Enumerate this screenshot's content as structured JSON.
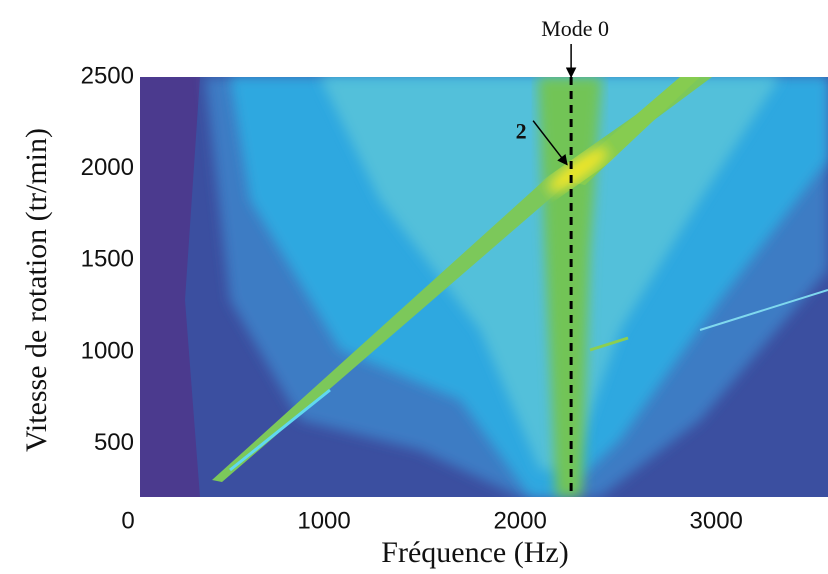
{
  "chart_data": {
    "type": "heatmap",
    "x_label": "Fréquence (Hz)",
    "y_label": "Vitesse de rotation (tr/min)",
    "xlim": [
      0,
      3560
    ],
    "ylim": [
      210,
      2500
    ],
    "xticks": [
      0,
      1000,
      2000,
      3000
    ],
    "yticks": [
      500,
      1000,
      1500,
      2000,
      2500
    ],
    "annotations": [
      {
        "text": "Mode 0",
        "x": 2260
      },
      {
        "text": "2",
        "x": 2260,
        "y": 2000
      }
    ]
  }
}
